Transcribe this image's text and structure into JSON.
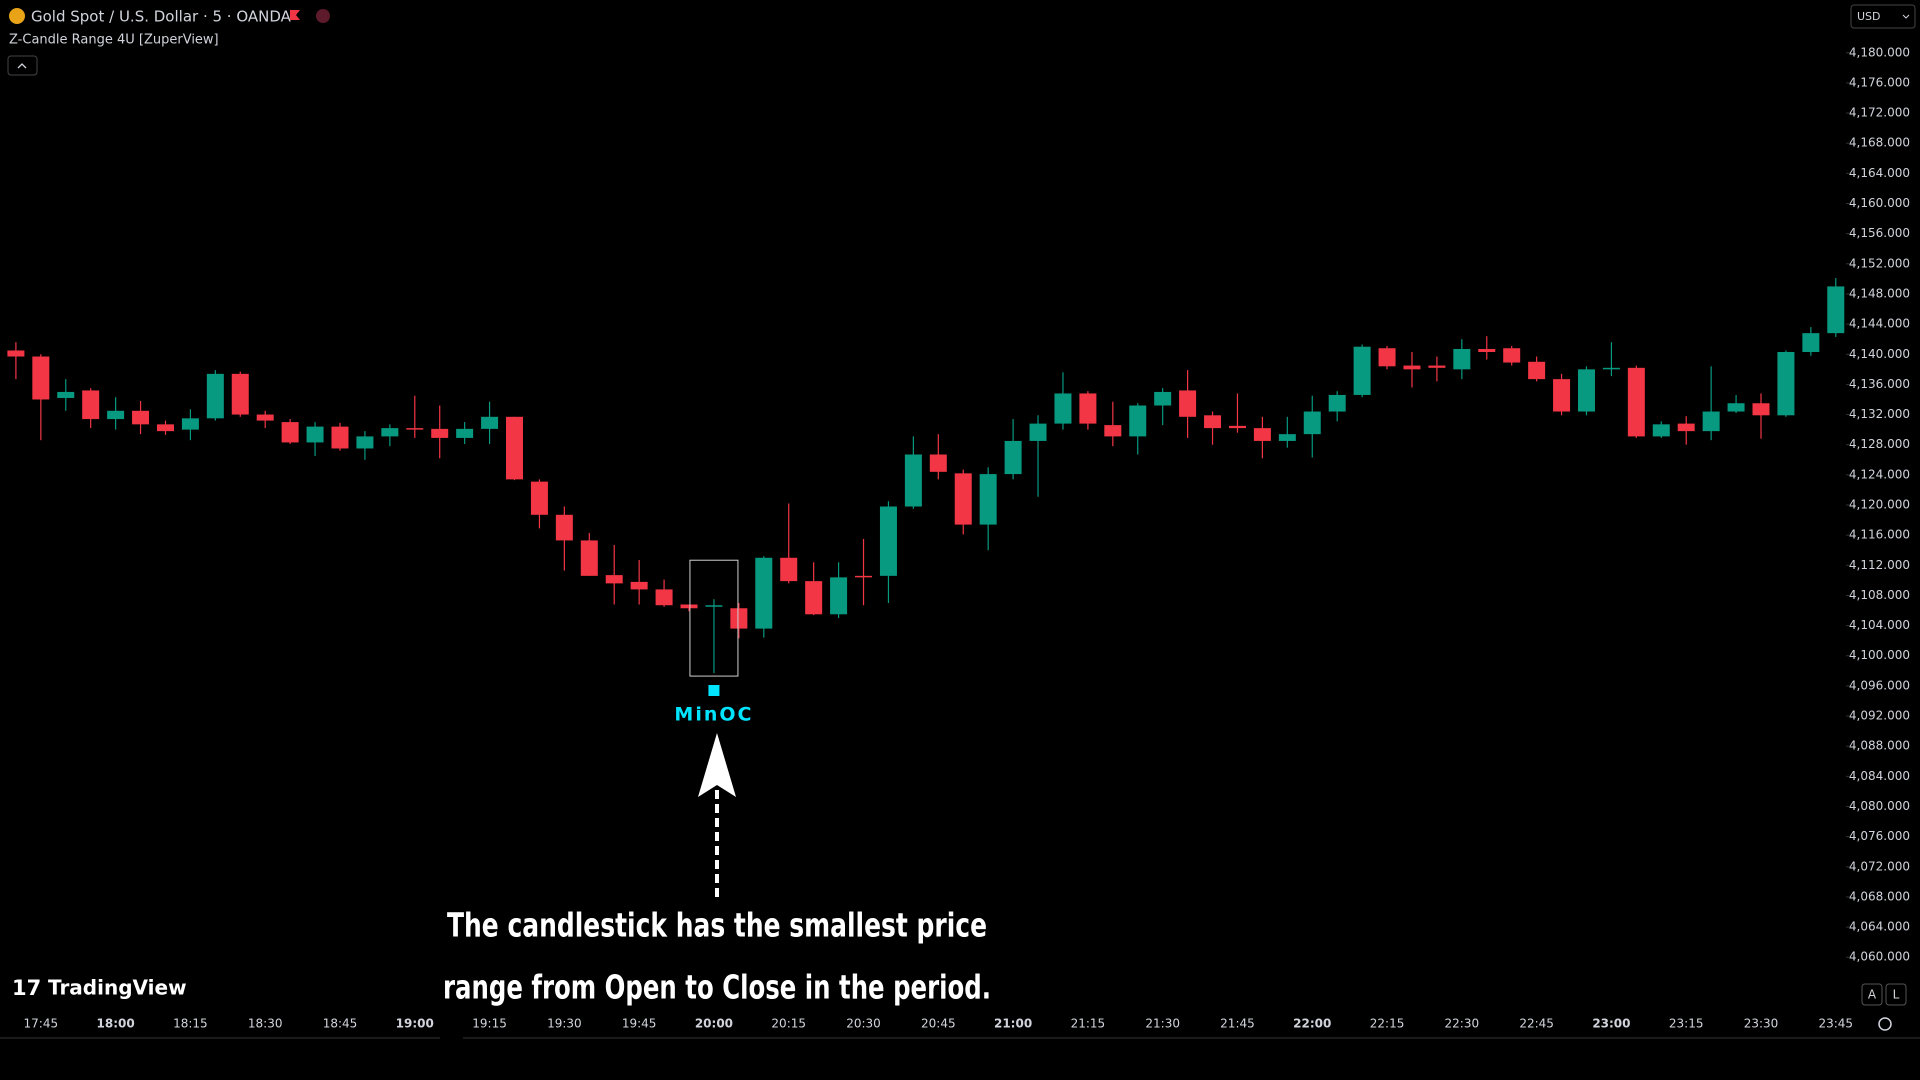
{
  "header": {
    "symbol": "Gold Spot / U.S. Dollar · 5 · OANDA",
    "indicator": "Z-Candle Range 4U [ZuperView]",
    "currency": "USD"
  },
  "logo": "TradingView",
  "buttons": [
    "A",
    "L"
  ],
  "chart_data": {
    "type": "candlestick",
    "categories": [
      null,
      "17:45",
      null,
      null,
      "18:00",
      null,
      null,
      "18:15",
      null,
      null,
      "18:30",
      null,
      null,
      "18:45",
      null,
      null,
      "19:00",
      null,
      null,
      "19:15",
      null,
      null,
      "19:30",
      null,
      null,
      "19:45",
      null,
      null,
      "20:00",
      null,
      null,
      "20:15",
      null,
      null,
      "20:30",
      null,
      null,
      "20:45",
      null,
      null,
      "21:00",
      null,
      null,
      "21:15",
      null,
      null,
      "21:30",
      null,
      null,
      "21:45",
      null,
      null,
      "22:00",
      null,
      null,
      "22:15",
      null,
      null,
      "22:30",
      null,
      null,
      "22:45",
      null,
      null,
      "23:00",
      null,
      null,
      "23:15",
      null,
      null,
      "23:30",
      null,
      null,
      "23:45"
    ],
    "open": [
      4140.5,
      4139.7,
      4134.2,
      4135.2,
      4131.4,
      4132.5,
      4130.7,
      4130.0,
      4131.5,
      4137.4,
      4132.0,
      4131.0,
      4128.3,
      4130.4,
      4127.5,
      4129.1,
      4130.2,
      4130.1,
      4128.9,
      4130.1,
      4131.7,
      4123.1,
      4118.7,
      4115.3,
      4110.7,
      4109.8,
      4108.8,
      4106.8,
      4106.6,
      4106.3,
      4103.6,
      4113.0,
      4109.9,
      4105.5,
      4110.6,
      4110.6,
      4119.8,
      4126.7,
      4124.2,
      4117.4,
      4124.1,
      4128.5,
      4130.8,
      4134.8,
      4130.6,
      4129.1,
      4133.2,
      4135.2,
      4131.9,
      4130.5,
      4130.2,
      4128.5,
      4129.4,
      4132.4,
      4134.6,
      4140.8,
      4138.5,
      4138.5,
      4138.0,
      4140.7,
      4140.8,
      4139.0,
      4136.7,
      4132.4,
      4138.0,
      4138.2,
      4129.1,
      4130.8,
      4129.8,
      4132.4,
      4133.5,
      4131.9,
      4140.3,
      4142.8
    ],
    "high": [
      4141.6,
      4140.0,
      4136.7,
      4135.5,
      4134.3,
      4133.8,
      4131.2,
      4132.7,
      4137.9,
      4137.7,
      4132.5,
      4131.4,
      4131.0,
      4130.9,
      4129.8,
      4130.7,
      4134.5,
      4133.2,
      4131.0,
      4133.7,
      4131.7,
      4123.4,
      4119.8,
      4116.3,
      4114.7,
      4112.7,
      4110.1,
      4106.8,
      4107.5,
      4107.0,
      4113.2,
      4120.2,
      4112.4,
      4112.4,
      4115.5,
      4120.5,
      4129.1,
      4129.4,
      4124.7,
      4125.0,
      4131.4,
      4131.9,
      4137.6,
      4135.1,
      4133.7,
      4133.5,
      4135.5,
      4137.9,
      4132.4,
      4134.8,
      4131.7,
      4131.7,
      4134.5,
      4135.1,
      4141.3,
      4141.1,
      4140.3,
      4139.7,
      4142.0,
      4142.4,
      4141.1,
      4139.7,
      4137.4,
      4138.4,
      4141.6,
      4138.5,
      4131.1,
      4131.8,
      4138.4,
      4134.6,
      4134.8,
      4140.5,
      4143.6,
      4150.1
    ],
    "low": [
      4136.7,
      4128.6,
      4132.5,
      4130.2,
      4130.0,
      4129.4,
      4129.3,
      4128.6,
      4131.2,
      4131.7,
      4130.2,
      4128.1,
      4126.5,
      4127.2,
      4126.0,
      4127.8,
      4128.9,
      4126.2,
      4128.1,
      4128.1,
      4123.3,
      4116.9,
      4111.3,
      4110.6,
      4106.8,
      4106.8,
      4106.5,
      4105.9,
      4097.7,
      4102.3,
      4102.4,
      4109.6,
      4105.4,
      4105.0,
      4106.7,
      4107.0,
      4119.5,
      4123.4,
      4116.1,
      4114.0,
      4123.4,
      4121.1,
      4130.0,
      4130.0,
      4127.8,
      4126.7,
      4130.6,
      4128.9,
      4128.0,
      4129.6,
      4126.2,
      4127.6,
      4126.3,
      4131.1,
      4134.3,
      4138.0,
      4135.6,
      4136.4,
      4136.7,
      4139.3,
      4138.5,
      4136.4,
      4131.9,
      4131.9,
      4137.1,
      4128.9,
      4128.9,
      4128.0,
      4128.6,
      4132.2,
      4128.8,
      4131.7,
      4139.8,
      4142.3
    ],
    "close": [
      4139.7,
      4134.0,
      4135.0,
      4131.4,
      4132.5,
      4130.7,
      4129.8,
      4131.5,
      4137.4,
      4132.0,
      4131.2,
      4128.3,
      4130.4,
      4127.5,
      4129.1,
      4130.2,
      4130.0,
      4128.9,
      4130.1,
      4131.7,
      4123.4,
      4118.7,
      4115.3,
      4110.6,
      4109.6,
      4108.8,
      4106.7,
      4106.3,
      4106.7,
      4103.6,
      4113.0,
      4109.9,
      4105.5,
      4110.4,
      4110.4,
      4119.8,
      4126.7,
      4124.4,
      4117.4,
      4124.1,
      4128.5,
      4130.8,
      4134.8,
      4130.8,
      4129.1,
      4133.2,
      4135.0,
      4131.7,
      4130.2,
      4130.2,
      4128.5,
      4129.4,
      4132.4,
      4134.6,
      4141.0,
      4138.4,
      4138.0,
      4138.2,
      4140.7,
      4140.3,
      4138.9,
      4136.7,
      4132.4,
      4138.0,
      4138.2,
      4129.1,
      4130.7,
      4129.8,
      4132.4,
      4133.5,
      4131.9,
      4140.3,
      4142.8,
      4149.0
    ],
    "up_color": "#089981",
    "down_color": "#f23645",
    "ylim": [
      4053,
      4187
    ],
    "yticks": [
      {
        "value": 4180,
        "label": "4,180.000"
      },
      {
        "value": 4176,
        "label": "4,176.000"
      },
      {
        "value": 4172,
        "label": "4,172.000"
      },
      {
        "value": 4168,
        "label": "4,168.000"
      },
      {
        "value": 4164,
        "label": "4,164.000"
      },
      {
        "value": 4160,
        "label": "4,160.000"
      },
      {
        "value": 4156,
        "label": "4,156.000"
      },
      {
        "value": 4152,
        "label": "4,152.000"
      },
      {
        "value": 4148,
        "label": "4,148.000"
      },
      {
        "value": 4144,
        "label": "4,144.000"
      },
      {
        "value": 4140,
        "label": "4,140.000"
      },
      {
        "value": 4136,
        "label": "4,136.000"
      },
      {
        "value": 4132,
        "label": "4,132.000"
      },
      {
        "value": 4128,
        "label": "4,128.000"
      },
      {
        "value": 4124,
        "label": "4,124.000"
      },
      {
        "value": 4120,
        "label": "4,120.000"
      },
      {
        "value": 4116,
        "label": "4,116.000"
      },
      {
        "value": 4112,
        "label": "4,112.000"
      },
      {
        "value": 4108,
        "label": "4,108.000"
      },
      {
        "value": 4104,
        "label": "4,104.000"
      },
      {
        "value": 4100,
        "label": "4,100.000"
      },
      {
        "value": 4096,
        "label": "4,096.000"
      },
      {
        "value": 4092,
        "label": "4,092.000"
      },
      {
        "value": 4088,
        "label": "4,088.000"
      },
      {
        "value": 4084,
        "label": "4,084.000"
      },
      {
        "value": 4080,
        "label": "4,080.000"
      },
      {
        "value": 4076,
        "label": "4,076.000"
      },
      {
        "value": 4072,
        "label": "4,072.000"
      },
      {
        "value": 4068,
        "label": "4,068.000"
      },
      {
        "value": 4064,
        "label": "4,064.000"
      },
      {
        "value": 4060,
        "label": "4,060.000"
      }
    ],
    "grid": false,
    "highlight": {
      "index": 28,
      "label": "MinOC",
      "color": "#00e5ff"
    },
    "annotation": [
      "The candlestick has the smallest price",
      "range from Open to Close in the period."
    ]
  }
}
